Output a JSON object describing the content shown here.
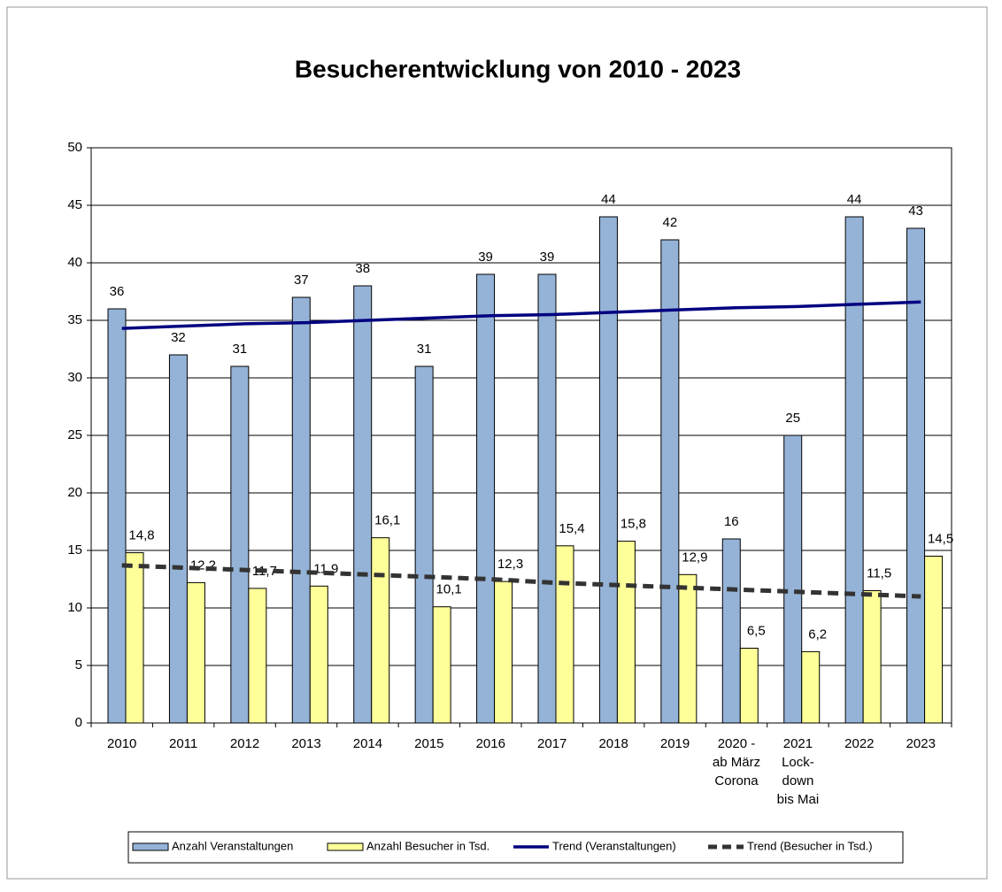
{
  "chart_data": {
    "type": "bar",
    "title": "Besucherentwicklung von 2010 - 2023",
    "categories": [
      "2010",
      "2011",
      "2012",
      "2013",
      "2014",
      "2015",
      "2016",
      "2017",
      "2018",
      "2019",
      [
        "2020 -",
        "ab März",
        "Corona"
      ],
      [
        "2021",
        "Lock-",
        "down",
        "bis Mai"
      ],
      "2022",
      "2023"
    ],
    "series": [
      {
        "name": "Anzahl Veranstaltungen",
        "type": "bar",
        "color": "#95b3d7",
        "values": [
          36,
          32,
          31,
          37,
          38,
          31,
          39,
          39,
          44,
          42,
          16,
          25,
          44,
          43
        ]
      },
      {
        "name": "Anzahl Besucher in Tsd.",
        "type": "bar",
        "color": "#ffff99",
        "values": [
          14.8,
          12.2,
          11.7,
          11.9,
          16.1,
          10.1,
          12.3,
          15.4,
          15.8,
          12.9,
          6.5,
          6.2,
          11.5,
          14.5
        ],
        "value_labels": [
          "14,8",
          "12,2",
          "11,7",
          "11,9",
          "16,1",
          "10,1",
          "12,3",
          "15,4",
          "15,8",
          "12,9",
          "6,5",
          "6,2",
          "11,5",
          "14,5"
        ]
      },
      {
        "name": "Trend (Veranstaltungen)",
        "type": "line",
        "color": "#000080",
        "dashed": false,
        "values": [
          34.3,
          34.5,
          34.7,
          34.8,
          35.0,
          35.2,
          35.4,
          35.5,
          35.7,
          35.9,
          36.1,
          36.2,
          36.4,
          36.6
        ]
      },
      {
        "name": "Trend (Besucher in Tsd.)",
        "type": "line",
        "color": "#333333",
        "dashed": true,
        "values": [
          13.7,
          13.5,
          13.3,
          13.1,
          12.9,
          12.7,
          12.5,
          12.2,
          12.0,
          11.8,
          11.6,
          11.4,
          11.2,
          11.0
        ]
      }
    ],
    "ylim": [
      0,
      50
    ],
    "yticks": [
      0,
      5,
      10,
      15,
      20,
      25,
      30,
      35,
      40,
      45,
      50
    ],
    "grid": true,
    "legend": "bottom"
  }
}
